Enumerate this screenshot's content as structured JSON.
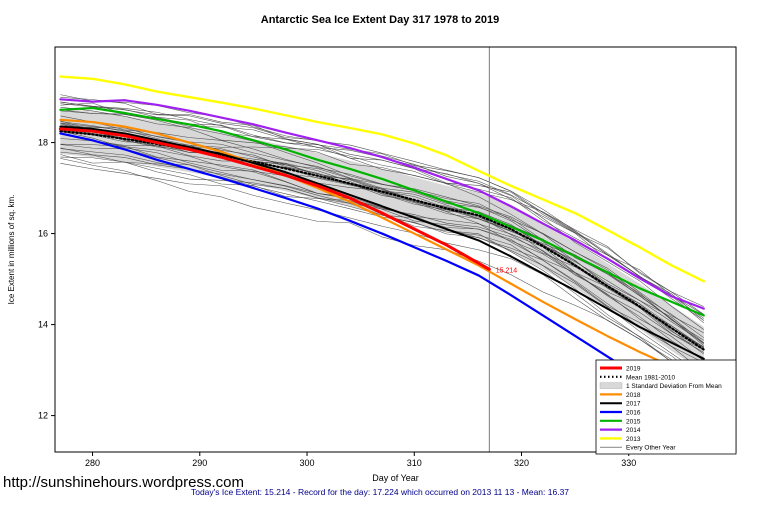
{
  "page": {
    "title": "Antarctic Sea Ice Extent Day 317 1978 to 2019",
    "footer_url": "http://sunshinehours.wordpress.com",
    "footer_stats": "Today's Ice Extent: 15.214  - Record for the day: 17.224 which occurred on 2013 11 13  - Mean: 16.37"
  },
  "chart_data": {
    "type": "line",
    "title": "Antarctic Sea Ice Extent Day 317 1978 to 2019",
    "xlabel": "Day of Year",
    "ylabel": "Ice Extent in millions of sq. km.",
    "xlim": [
      276.5,
      340
    ],
    "ylim": [
      11.2,
      20.1
    ],
    "x_ticks": [
      280,
      290,
      300,
      310,
      320,
      330
    ],
    "y_ticks": [
      12,
      14,
      16,
      18
    ],
    "grid": false,
    "vline_day": 317,
    "annotation": {
      "text": "15.214",
      "day": 317.6,
      "value": 15.15,
      "color": "#ff0000"
    },
    "days": [
      277,
      280,
      283,
      286,
      289,
      292,
      295,
      298,
      301,
      304,
      307,
      310,
      313,
      316,
      319,
      322,
      325,
      328,
      331,
      334,
      337
    ],
    "band": {
      "halfwidth": 0.5,
      "color": "#d8d8d8",
      "label": "1 Standard Deviation From Mean"
    },
    "other_years_count": 32,
    "other_years_color": "#3f3f3f",
    "series": [
      {
        "key": "mean",
        "name": "Mean 1981-2010",
        "color": "#000000",
        "width": 2.2,
        "dash": "1.5,2.5",
        "values": [
          18.25,
          18.18,
          18.08,
          17.97,
          17.85,
          17.72,
          17.58,
          17.43,
          17.27,
          17.1,
          16.92,
          16.74,
          16.55,
          16.4,
          16.1,
          15.72,
          15.3,
          14.85,
          14.4,
          13.92,
          13.45
        ]
      },
      {
        "key": "y2013",
        "name": "2013",
        "color": "#ffff00",
        "width": 2.4,
        "values": [
          19.45,
          19.4,
          19.28,
          19.12,
          19.0,
          18.88,
          18.75,
          18.6,
          18.45,
          18.32,
          18.18,
          17.98,
          17.72,
          17.38,
          17.05,
          16.75,
          16.45,
          16.08,
          15.7,
          15.3,
          14.95
        ]
      },
      {
        "key": "y2014",
        "name": "2014",
        "color": "#a020f0",
        "width": 2.2,
        "values": [
          18.95,
          18.9,
          18.93,
          18.83,
          18.7,
          18.55,
          18.4,
          18.22,
          18.05,
          17.88,
          17.68,
          17.45,
          17.2,
          16.95,
          16.6,
          16.22,
          15.85,
          15.45,
          15.02,
          14.62,
          14.35
        ]
      },
      {
        "key": "y2015",
        "name": "2015",
        "color": "#00b400",
        "width": 2.2,
        "values": [
          18.72,
          18.76,
          18.65,
          18.52,
          18.4,
          18.25,
          18.05,
          17.85,
          17.62,
          17.42,
          17.2,
          16.95,
          16.7,
          16.45,
          16.15,
          15.85,
          15.5,
          15.15,
          14.8,
          14.5,
          14.2
        ]
      },
      {
        "key": "y2018",
        "name": "2018",
        "color": "#ff8c00",
        "width": 2.2,
        "values": [
          18.5,
          18.45,
          18.35,
          18.2,
          18.0,
          17.8,
          17.55,
          17.28,
          17.0,
          16.7,
          16.35,
          16.0,
          15.65,
          15.3,
          14.9,
          14.5,
          14.12,
          13.75,
          13.4,
          13.08,
          12.85
        ]
      },
      {
        "key": "y2017",
        "name": "2017",
        "color": "#000000",
        "width": 2.0,
        "values": [
          18.35,
          18.3,
          18.2,
          18.05,
          17.9,
          17.75,
          17.55,
          17.35,
          17.1,
          16.85,
          16.6,
          16.35,
          16.1,
          15.85,
          15.5,
          15.12,
          14.75,
          14.35,
          13.95,
          13.6,
          13.25
        ]
      },
      {
        "key": "y2016",
        "name": "2016",
        "color": "#0000ff",
        "width": 2.2,
        "values": [
          18.2,
          18.05,
          17.85,
          17.62,
          17.42,
          17.22,
          17.0,
          16.78,
          16.55,
          16.28,
          16.0,
          15.7,
          15.4,
          15.08,
          14.65,
          14.2,
          13.75,
          13.3,
          12.85,
          12.35,
          11.7
        ]
      },
      {
        "key": "y2019",
        "name": "2019",
        "color": "#ff0000",
        "width": 3.0,
        "days": [
          277,
          280,
          283,
          286,
          289,
          292,
          295,
          298,
          301,
          304,
          307,
          310,
          313,
          316,
          317
        ],
        "values": [
          18.3,
          18.25,
          18.15,
          18.0,
          17.85,
          17.68,
          17.48,
          17.28,
          17.05,
          16.78,
          16.45,
          16.1,
          15.75,
          15.35,
          15.214
        ]
      }
    ],
    "legend": {
      "position": "bottom-right",
      "items": [
        {
          "label": "2019",
          "swatch": "line",
          "color": "#ff0000",
          "width": 3
        },
        {
          "label": "Mean 1981-2010",
          "swatch": "dashed",
          "color": "#000000",
          "width": 2.2,
          "dash": "1.5,2.5"
        },
        {
          "label": "1 Standard Deviation From Mean",
          "swatch": "band",
          "color": "#d8d8d8"
        },
        {
          "label": "2018",
          "swatch": "line",
          "color": "#ff8c00",
          "width": 2.2
        },
        {
          "label": "2017",
          "swatch": "line",
          "color": "#000000",
          "width": 2
        },
        {
          "label": "2016",
          "swatch": "line",
          "color": "#0000ff",
          "width": 2.2
        },
        {
          "label": "2015",
          "swatch": "line",
          "color": "#00b400",
          "width": 2.2
        },
        {
          "label": "2014",
          "swatch": "line",
          "color": "#a020f0",
          "width": 2.2
        },
        {
          "label": "2013",
          "swatch": "line",
          "color": "#ffff00",
          "width": 2.4
        },
        {
          "label": "Every Other Year",
          "swatch": "thin",
          "color": "#3f3f3f",
          "width": 0.6
        }
      ]
    }
  }
}
